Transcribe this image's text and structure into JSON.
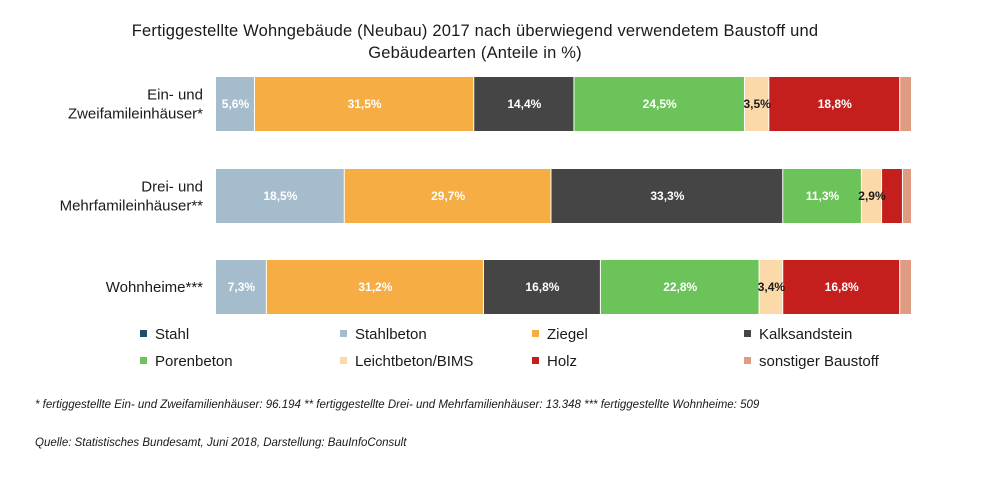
{
  "chart_data": {
    "type": "bar",
    "orientation": "horizontal",
    "stacked": true,
    "title": "Fertiggestellte Wohngebäude (Neubau) 2017 nach überwiegend verwendetem Baustoff und\nGebäudearten (Anteile in %)",
    "categories": [
      "Ein- und\nZweifamileinhäuser*",
      "Drei- und\nMehrfamileinhäuser**",
      "Wohnheime***"
    ],
    "series": [
      {
        "name": "Stahl",
        "color": "#1f4e67",
        "values": [
          0.0,
          0.0,
          0.0
        ],
        "labels": [
          "",
          "",
          ""
        ]
      },
      {
        "name": "Stahlbeton",
        "color": "#a5bccd",
        "values": [
          5.6,
          18.5,
          7.3
        ],
        "labels": [
          "5,6%",
          "18,5%",
          "7,3%"
        ]
      },
      {
        "name": "Ziegel",
        "color": "#f5ad44",
        "values": [
          31.5,
          29.7,
          31.2
        ],
        "labels": [
          "31,5%",
          "29,7%",
          "31,2%"
        ]
      },
      {
        "name": "Kalksandstein",
        "color": "#454545",
        "values": [
          14.4,
          33.3,
          16.8
        ],
        "labels": [
          "14,4%",
          "33,3%",
          "16,8%"
        ]
      },
      {
        "name": "Porenbeton",
        "color": "#6cc35a",
        "values": [
          24.5,
          11.3,
          22.8
        ],
        "labels": [
          "24,5%",
          "11,3%",
          "22,8%"
        ]
      },
      {
        "name": "Leichtbeton/BIMS",
        "color": "#fcd9a9",
        "values": [
          3.5,
          2.9,
          3.4
        ],
        "labels": [
          "3,5%",
          "2,9%",
          "3,4%"
        ]
      },
      {
        "name": "Holz",
        "color": "#c51f1d",
        "values": [
          18.8,
          3.0,
          16.8
        ],
        "labels": [
          "18,8%",
          "",
          "16,8%"
        ]
      },
      {
        "name": "sonstiger Baustoff",
        "color": "#e09b83",
        "values": [
          1.7,
          1.3,
          1.7
        ],
        "labels": [
          "",
          "",
          ""
        ]
      }
    ],
    "xlim": [
      0,
      100
    ],
    "grid": false,
    "legend_position": "bottom"
  },
  "footnote": "* fertiggestellte Ein- und Zweifamilienhäuser:  96.194 ** fertiggestellte Drei- und Mehrfamilienhäuser: 13.348 *** fertiggestellte Wohnheime: 509",
  "source": "Quelle: Statistisches Bundesamt, Juni 2018, Darstellung: BauInfoConsult"
}
